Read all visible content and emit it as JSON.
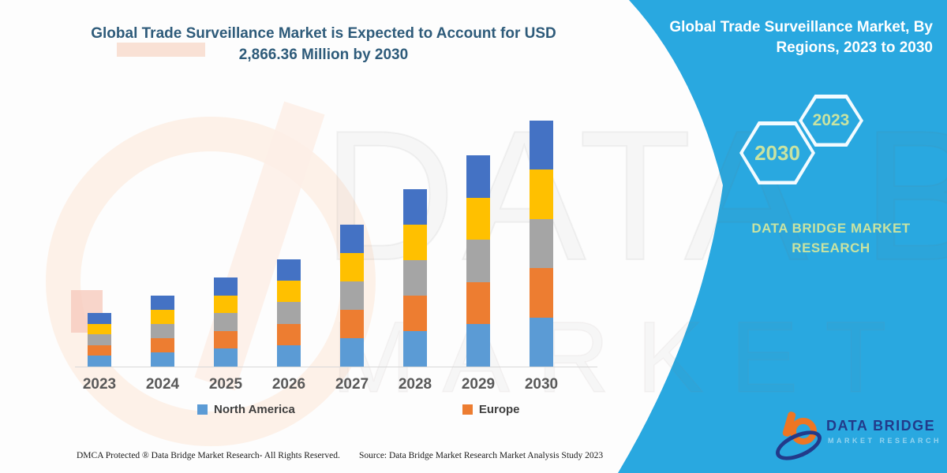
{
  "header": {
    "title": "Global Trade Surveillance Market is Expected to Account for USD 2,866.36 Million by 2030"
  },
  "sidebar": {
    "background_color": "#29A8E0",
    "title": "Global Trade Surveillance Market, By Regions, 2023 to 2030",
    "hexagons": [
      {
        "label": "2030"
      },
      {
        "label": "2023"
      }
    ],
    "brand_text": "DATA BRIDGE MARKET RESEARCH",
    "accent_text_color": "#C8E3A2"
  },
  "chart_data": {
    "type": "bar",
    "subtype": "stacked",
    "title": "Global Trade Surveillance Market is Expected to Account for USD 2,866.36 Million by 2030",
    "unit": "USD Million",
    "categories": [
      "2023",
      "2024",
      "2025",
      "2026",
      "2027",
      "2028",
      "2029",
      "2030"
    ],
    "series": [
      {
        "name": "North America",
        "color": "#5B9BD5",
        "values": [
          125.0,
          165.4,
          207.6,
          249.8,
          330.8,
          413.4,
          492.4,
          573.3
        ]
      },
      {
        "name": "Europe",
        "color": "#ED7D31",
        "values": [
          125.0,
          165.4,
          207.6,
          249.8,
          330.8,
          413.4,
          492.4,
          573.3
        ]
      },
      {
        "name": "",
        "color": "#A5A5A5",
        "values": [
          125.0,
          165.4,
          207.6,
          249.8,
          330.8,
          413.4,
          492.4,
          573.3
        ]
      },
      {
        "name": "",
        "color": "#FFC000",
        "values": [
          125.0,
          165.4,
          207.6,
          249.8,
          330.8,
          413.4,
          492.4,
          573.3
        ]
      },
      {
        "name": "",
        "color": "#4472C4",
        "values": [
          125.0,
          165.4,
          207.6,
          249.8,
          330.8,
          413.4,
          492.4,
          573.3
        ]
      }
    ],
    "totals_estimated": [
      625,
      827,
      1038,
      1249,
      1654,
      2067,
      2462,
      2866.36
    ],
    "xlabel": "",
    "ylabel": "",
    "ylim": [
      0,
      2900
    ],
    "grid": false,
    "legend_position": "bottom",
    "legend_visible_entries": [
      "North America",
      "Europe"
    ]
  },
  "legend": {
    "items": [
      {
        "label": "North America",
        "color": "#5B9BD5"
      },
      {
        "label": "Europe",
        "color": "#ED7D31"
      }
    ]
  },
  "watermark": {
    "text_top": "DATA BRIDGE",
    "text_bottom": "MARKET RESEARCH"
  },
  "logo": {
    "line1": "DATA BRIDGE",
    "line2": "MARKET RESEARCH"
  },
  "footer": {
    "dmca": "DMCA Protected ® Data Bridge Market Research-  All Rights Reserved.",
    "source": "Source: Data Bridge Market Research  Market Analysis Study 2023"
  }
}
